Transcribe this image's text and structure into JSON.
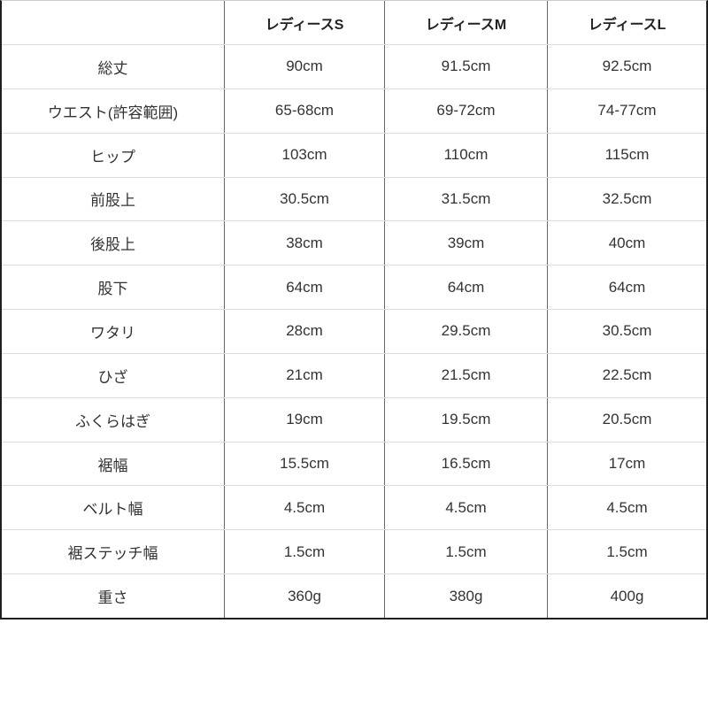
{
  "accent_colors": {
    "outer_border": "#1f1f1f",
    "column_line": "#666666",
    "row_line": "#dcdcdc",
    "text": "#333333",
    "background": "#ffffff"
  },
  "chart_data": {
    "type": "table",
    "title": "",
    "corner_label": "",
    "columns": [
      "レディースS",
      "レディースM",
      "レディースL"
    ],
    "rows": [
      {
        "label": "総丈",
        "values": [
          "90cm",
          "91.5cm",
          "92.5cm"
        ]
      },
      {
        "label": "ウエスト(許容範囲)",
        "values": [
          "65-68cm",
          "69-72cm",
          "74-77cm"
        ]
      },
      {
        "label": "ヒップ",
        "values": [
          "103cm",
          "110cm",
          "115cm"
        ]
      },
      {
        "label": "前股上",
        "values": [
          "30.5cm",
          "31.5cm",
          "32.5cm"
        ]
      },
      {
        "label": "後股上",
        "values": [
          "38cm",
          "39cm",
          "40cm"
        ]
      },
      {
        "label": "股下",
        "values": [
          "64cm",
          "64cm",
          "64cm"
        ]
      },
      {
        "label": "ワタリ",
        "values": [
          "28cm",
          "29.5cm",
          "30.5cm"
        ]
      },
      {
        "label": "ひざ",
        "values": [
          "21cm",
          "21.5cm",
          "22.5cm"
        ]
      },
      {
        "label": "ふくらはぎ",
        "values": [
          "19cm",
          "19.5cm",
          "20.5cm"
        ]
      },
      {
        "label": "裾幅",
        "values": [
          "15.5cm",
          "16.5cm",
          "17cm"
        ]
      },
      {
        "label": "ベルト幅",
        "values": [
          "4.5cm",
          "4.5cm",
          "4.5cm"
        ]
      },
      {
        "label": "裾ステッチ幅",
        "values": [
          "1.5cm",
          "1.5cm",
          "1.5cm"
        ]
      },
      {
        "label": "重さ",
        "values": [
          "360g",
          "380g",
          "400g"
        ]
      }
    ]
  }
}
